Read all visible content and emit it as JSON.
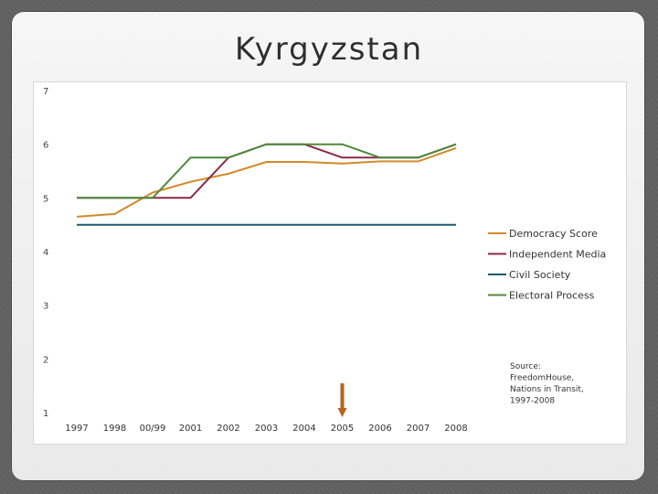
{
  "slide": {
    "title": "Kyrgyzstan"
  },
  "chart_data": {
    "type": "line",
    "x": [
      "1997",
      "1998",
      "00/99",
      "2001",
      "2002",
      "2003",
      "2004",
      "2005",
      "2006",
      "2007",
      "2008"
    ],
    "ylim": [
      1,
      7
    ],
    "yticks": [
      "1",
      "2",
      "3",
      "4",
      "5",
      "6",
      "7"
    ],
    "grid": false,
    "legend_position": "right",
    "series": [
      {
        "name": "Democracy Score",
        "color": "#d4892a",
        "values": [
          4.65,
          4.7,
          5.1,
          5.3,
          5.45,
          5.67,
          5.67,
          5.64,
          5.68,
          5.68,
          5.93
        ]
      },
      {
        "name": "Independent Media",
        "color": "#8b2a45",
        "values": [
          5.0,
          5.0,
          5.0,
          5.0,
          5.75,
          6.0,
          6.0,
          5.75,
          5.75,
          5.75,
          6.0
        ]
      },
      {
        "name": "Civil Society",
        "color": "#1f5a6a",
        "values": [
          4.5,
          4.5,
          4.5,
          4.5,
          4.5,
          4.5,
          4.5,
          4.5,
          4.5,
          4.5,
          4.5
        ]
      },
      {
        "name": "Electoral Process",
        "color": "#4e8a3c",
        "values": [
          5.0,
          5.0,
          5.0,
          5.75,
          5.75,
          6.0,
          6.0,
          6.0,
          5.75,
          5.75,
          6.0
        ]
      }
    ],
    "annotation": {
      "lines": [
        "Source:",
        "FreedomHouse,",
        "Nations in Transit,",
        "1997-2008"
      ]
    },
    "marker": {
      "x": "2005",
      "color": "#b5651d"
    }
  }
}
